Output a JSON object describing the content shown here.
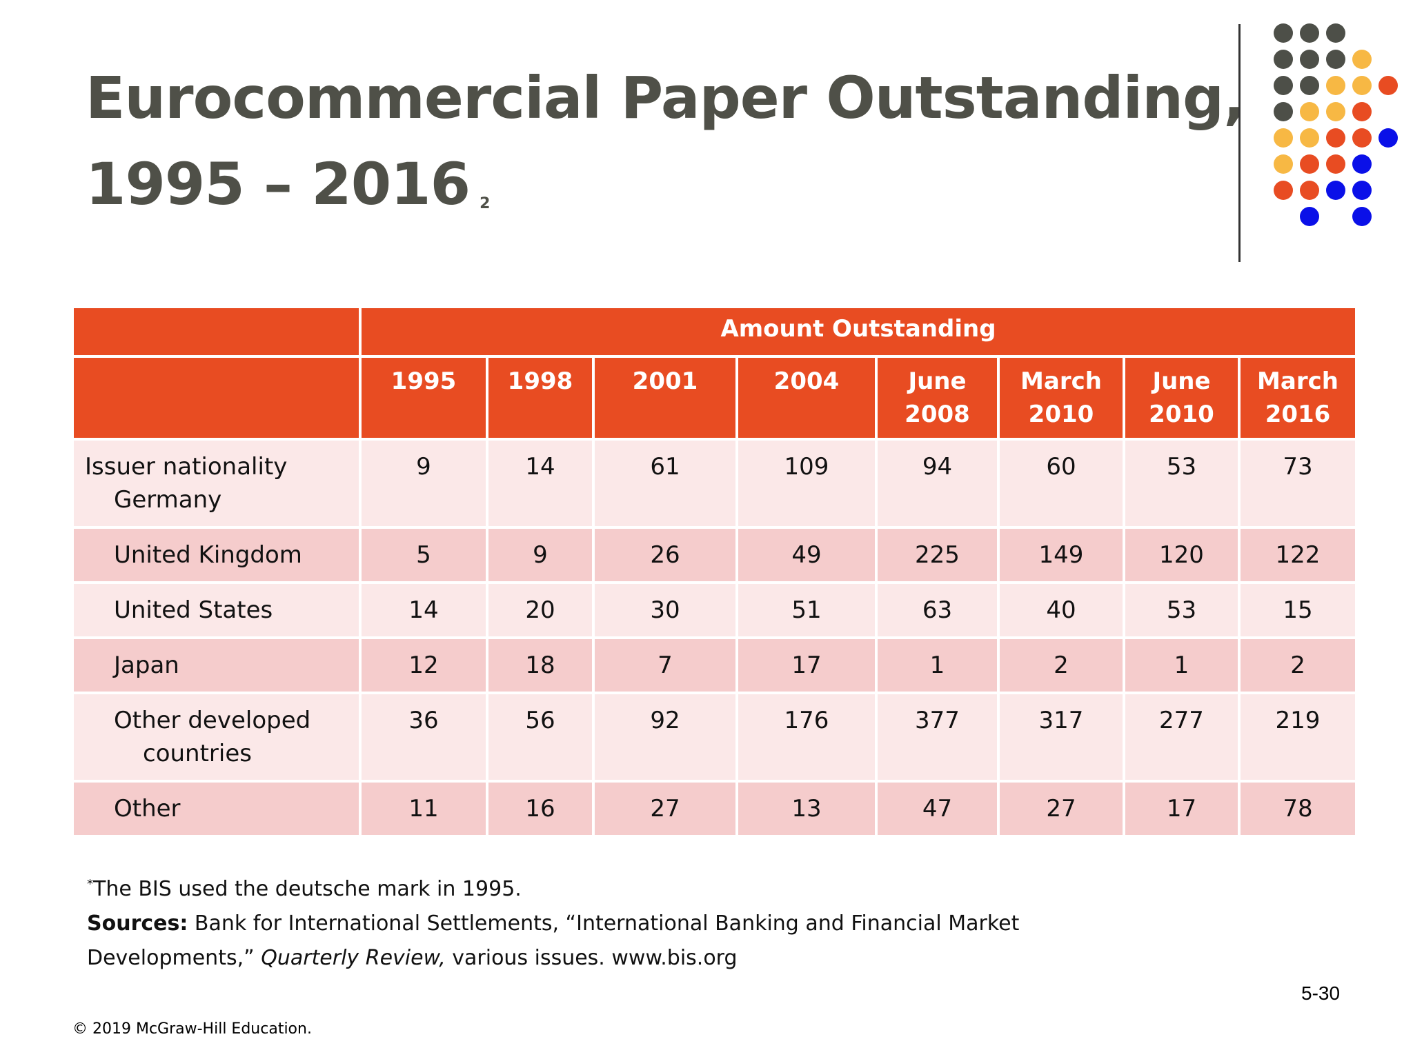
{
  "slide": {
    "title_line1": "Eurocommercial Paper Outstanding,",
    "title_line2": "1995 – 2016",
    "title_sup": "2",
    "page_number": "5-30",
    "copyright": "© 2019 McGraw-Hill Education."
  },
  "table": {
    "group_header": "Amount Outstanding",
    "columns": [
      {
        "line1": "1995",
        "line2": ""
      },
      {
        "line1": "1998",
        "line2": ""
      },
      {
        "line1": "2001",
        "line2": ""
      },
      {
        "line1": "2004",
        "line2": ""
      },
      {
        "line1": "June",
        "line2": "2008"
      },
      {
        "line1": "March",
        "line2": "2010"
      },
      {
        "line1": "June",
        "line2": "2010"
      },
      {
        "line1": "March",
        "line2": "2016"
      }
    ],
    "rows": [
      {
        "label1": "Issuer nationality",
        "label2": "Germany",
        "values": [
          "9",
          "14",
          "61",
          "109",
          "94",
          "60",
          "53",
          "73"
        ]
      },
      {
        "label1": "United Kingdom",
        "label2": "",
        "values": [
          "5",
          "9",
          "26",
          "49",
          "225",
          "149",
          "120",
          "122"
        ]
      },
      {
        "label1": "United States",
        "label2": "",
        "values": [
          "14",
          "20",
          "30",
          "51",
          "63",
          "40",
          "53",
          "15"
        ]
      },
      {
        "label1": "Japan",
        "label2": "",
        "values": [
          "12",
          "18",
          "7",
          "17",
          "1",
          "2",
          "1",
          "2"
        ]
      },
      {
        "label1": "Other developed",
        "label2": "countries",
        "values": [
          "36",
          "56",
          "92",
          "176",
          "377",
          "317",
          "277",
          "219"
        ]
      },
      {
        "label1": "Other",
        "label2": "",
        "values": [
          "11",
          "16",
          "27",
          "13",
          "47",
          "27",
          "17",
          "78"
        ]
      }
    ]
  },
  "footnote": {
    "marker": "*",
    "note": "The BIS used the deutsche mark in 1995.",
    "sources_label": "Sources:",
    "sources_text1": " Bank for International Settlements, “International Banking and Financial Market",
    "sources_text2": "Developments,” ",
    "sources_italic": "Quarterly Review,",
    "sources_text3": " various issues. www.bis.org"
  },
  "decoration": {
    "colors": {
      "gray": "#4d4f48",
      "yellow": "#f7b844",
      "orange": "#e84c22",
      "blue": "#0a10e8"
    }
  }
}
